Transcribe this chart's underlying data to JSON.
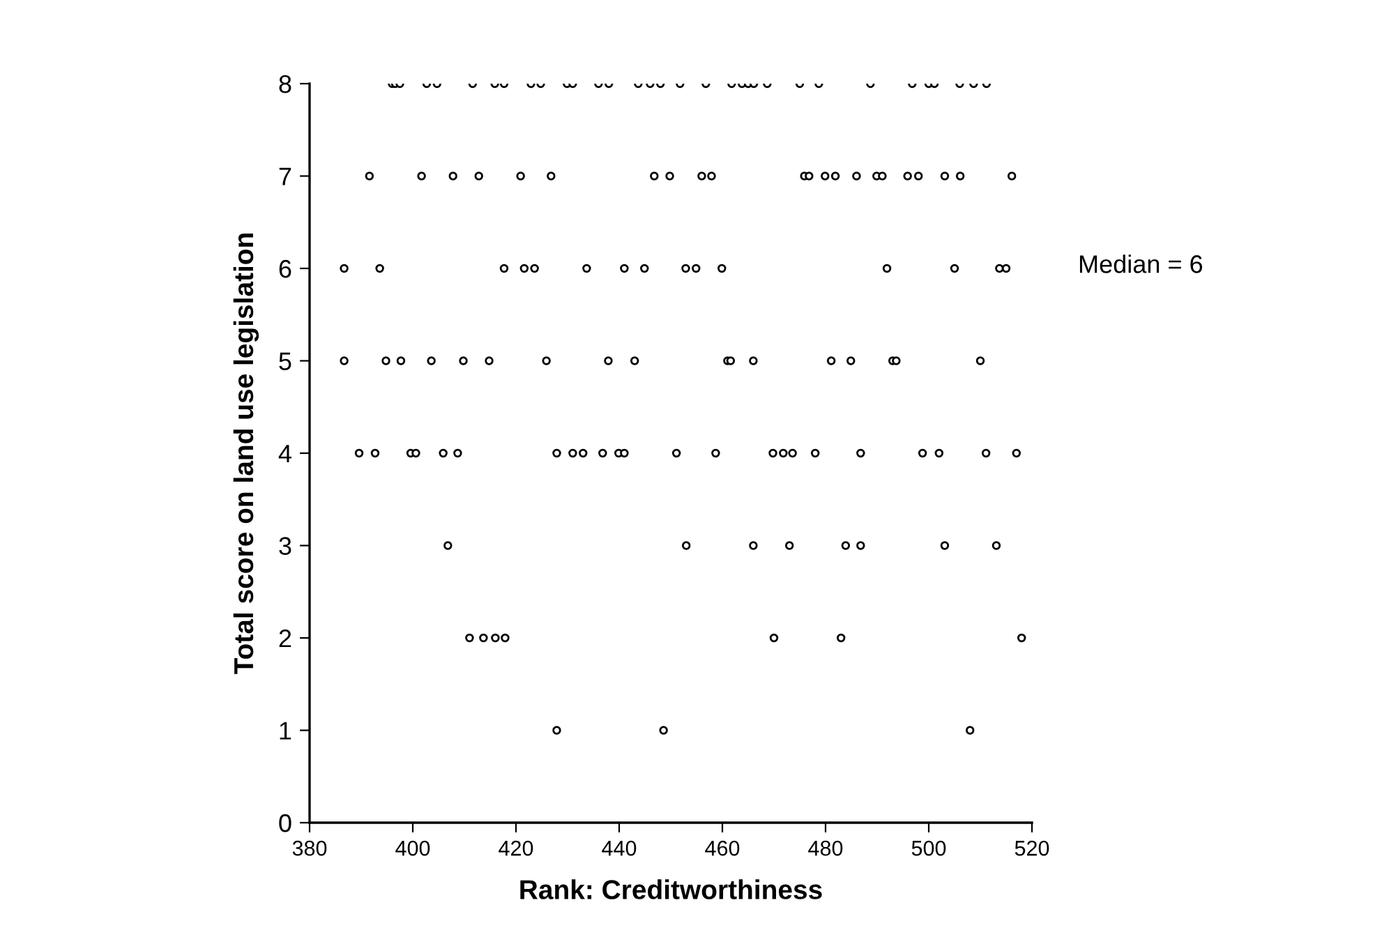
{
  "chart_data": {
    "type": "scatter",
    "xlabel": "Rank: Creditworthiness",
    "ylabel": "Total score on land use legislation",
    "annotations": [
      "Median = 6"
    ],
    "xlim": [
      380,
      520
    ],
    "xticks": [
      380,
      400,
      420,
      440,
      460,
      480,
      500,
      520
    ],
    "ylim": [
      0,
      8
    ],
    "yticks": [
      0,
      1,
      2,
      3,
      4,
      5,
      6,
      7,
      8
    ],
    "grid": false,
    "marker": "circle",
    "series": [
      {
        "color": "#000000",
        "x": [
          396.0,
          396.6,
          397.5,
          402.7,
          404.7,
          411.6,
          415.9,
          417.7,
          422.9,
          424.8,
          429.9,
          431.0,
          436.0,
          438.0,
          443.7,
          446.0,
          448.0,
          451.8,
          456.8,
          461.8,
          463.8,
          465.0,
          466.1,
          468.7,
          475.0,
          478.7,
          488.7,
          496.8,
          500.0,
          501.1,
          506.0,
          508.7,
          511.2,
          391.6,
          401.7,
          407.8,
          412.8,
          420.9,
          426.8,
          446.8,
          449.8,
          456.0,
          457.9,
          475.9,
          476.8,
          479.9,
          481.9,
          486.0,
          489.9,
          491.0,
          495.9,
          498.0,
          503.1,
          506.1,
          516.1,
          386.7,
          393.6,
          417.7,
          421.6,
          423.6,
          433.7,
          441.0,
          444.9,
          452.9,
          454.9,
          459.9,
          491.9,
          505.0,
          513.7,
          515.0,
          386.7,
          394.8,
          397.7,
          403.6,
          409.8,
          414.8,
          425.9,
          437.9,
          443.0,
          461.0,
          461.6,
          466.0,
          481.1,
          484.9,
          493.0,
          493.7,
          510.0,
          389.6,
          392.7,
          399.6,
          400.6,
          405.9,
          408.7,
          427.9,
          431.0,
          433.0,
          436.8,
          439.9,
          441.0,
          451.1,
          458.7,
          469.8,
          471.8,
          473.6,
          478.0,
          486.8,
          498.8,
          502.0,
          511.1,
          517.0,
          406.8,
          453.0,
          466.0,
          473.0,
          483.9,
          486.8,
          503.1,
          513.1,
          411.0,
          413.7,
          416.0,
          417.9,
          470.0,
          483.0,
          518.0,
          427.9,
          448.6,
          508.0
        ],
        "values": [
          8,
          8,
          8,
          8,
          8,
          8,
          8,
          8,
          8,
          8,
          8,
          8,
          8,
          8,
          8,
          8,
          8,
          8,
          8,
          8,
          8,
          8,
          8,
          8,
          8,
          8,
          8,
          8,
          8,
          8,
          8,
          8,
          8,
          7,
          7,
          7,
          7,
          7,
          7,
          7,
          7,
          7,
          7,
          7,
          7,
          7,
          7,
          7,
          7,
          7,
          7,
          7,
          7,
          7,
          7,
          6,
          6,
          6,
          6,
          6,
          6,
          6,
          6,
          6,
          6,
          6,
          6,
          6,
          6,
          6,
          5,
          5,
          5,
          5,
          5,
          5,
          5,
          5,
          5,
          5,
          5,
          5,
          5,
          5,
          5,
          5,
          5,
          4,
          4,
          4,
          4,
          4,
          4,
          4,
          4,
          4,
          4,
          4,
          4,
          4,
          4,
          4,
          4,
          4,
          4,
          4,
          4,
          4,
          4,
          4,
          3,
          3,
          3,
          3,
          3,
          3,
          3,
          3,
          2,
          2,
          2,
          2,
          2,
          2,
          2,
          1,
          1,
          1
        ]
      }
    ]
  }
}
